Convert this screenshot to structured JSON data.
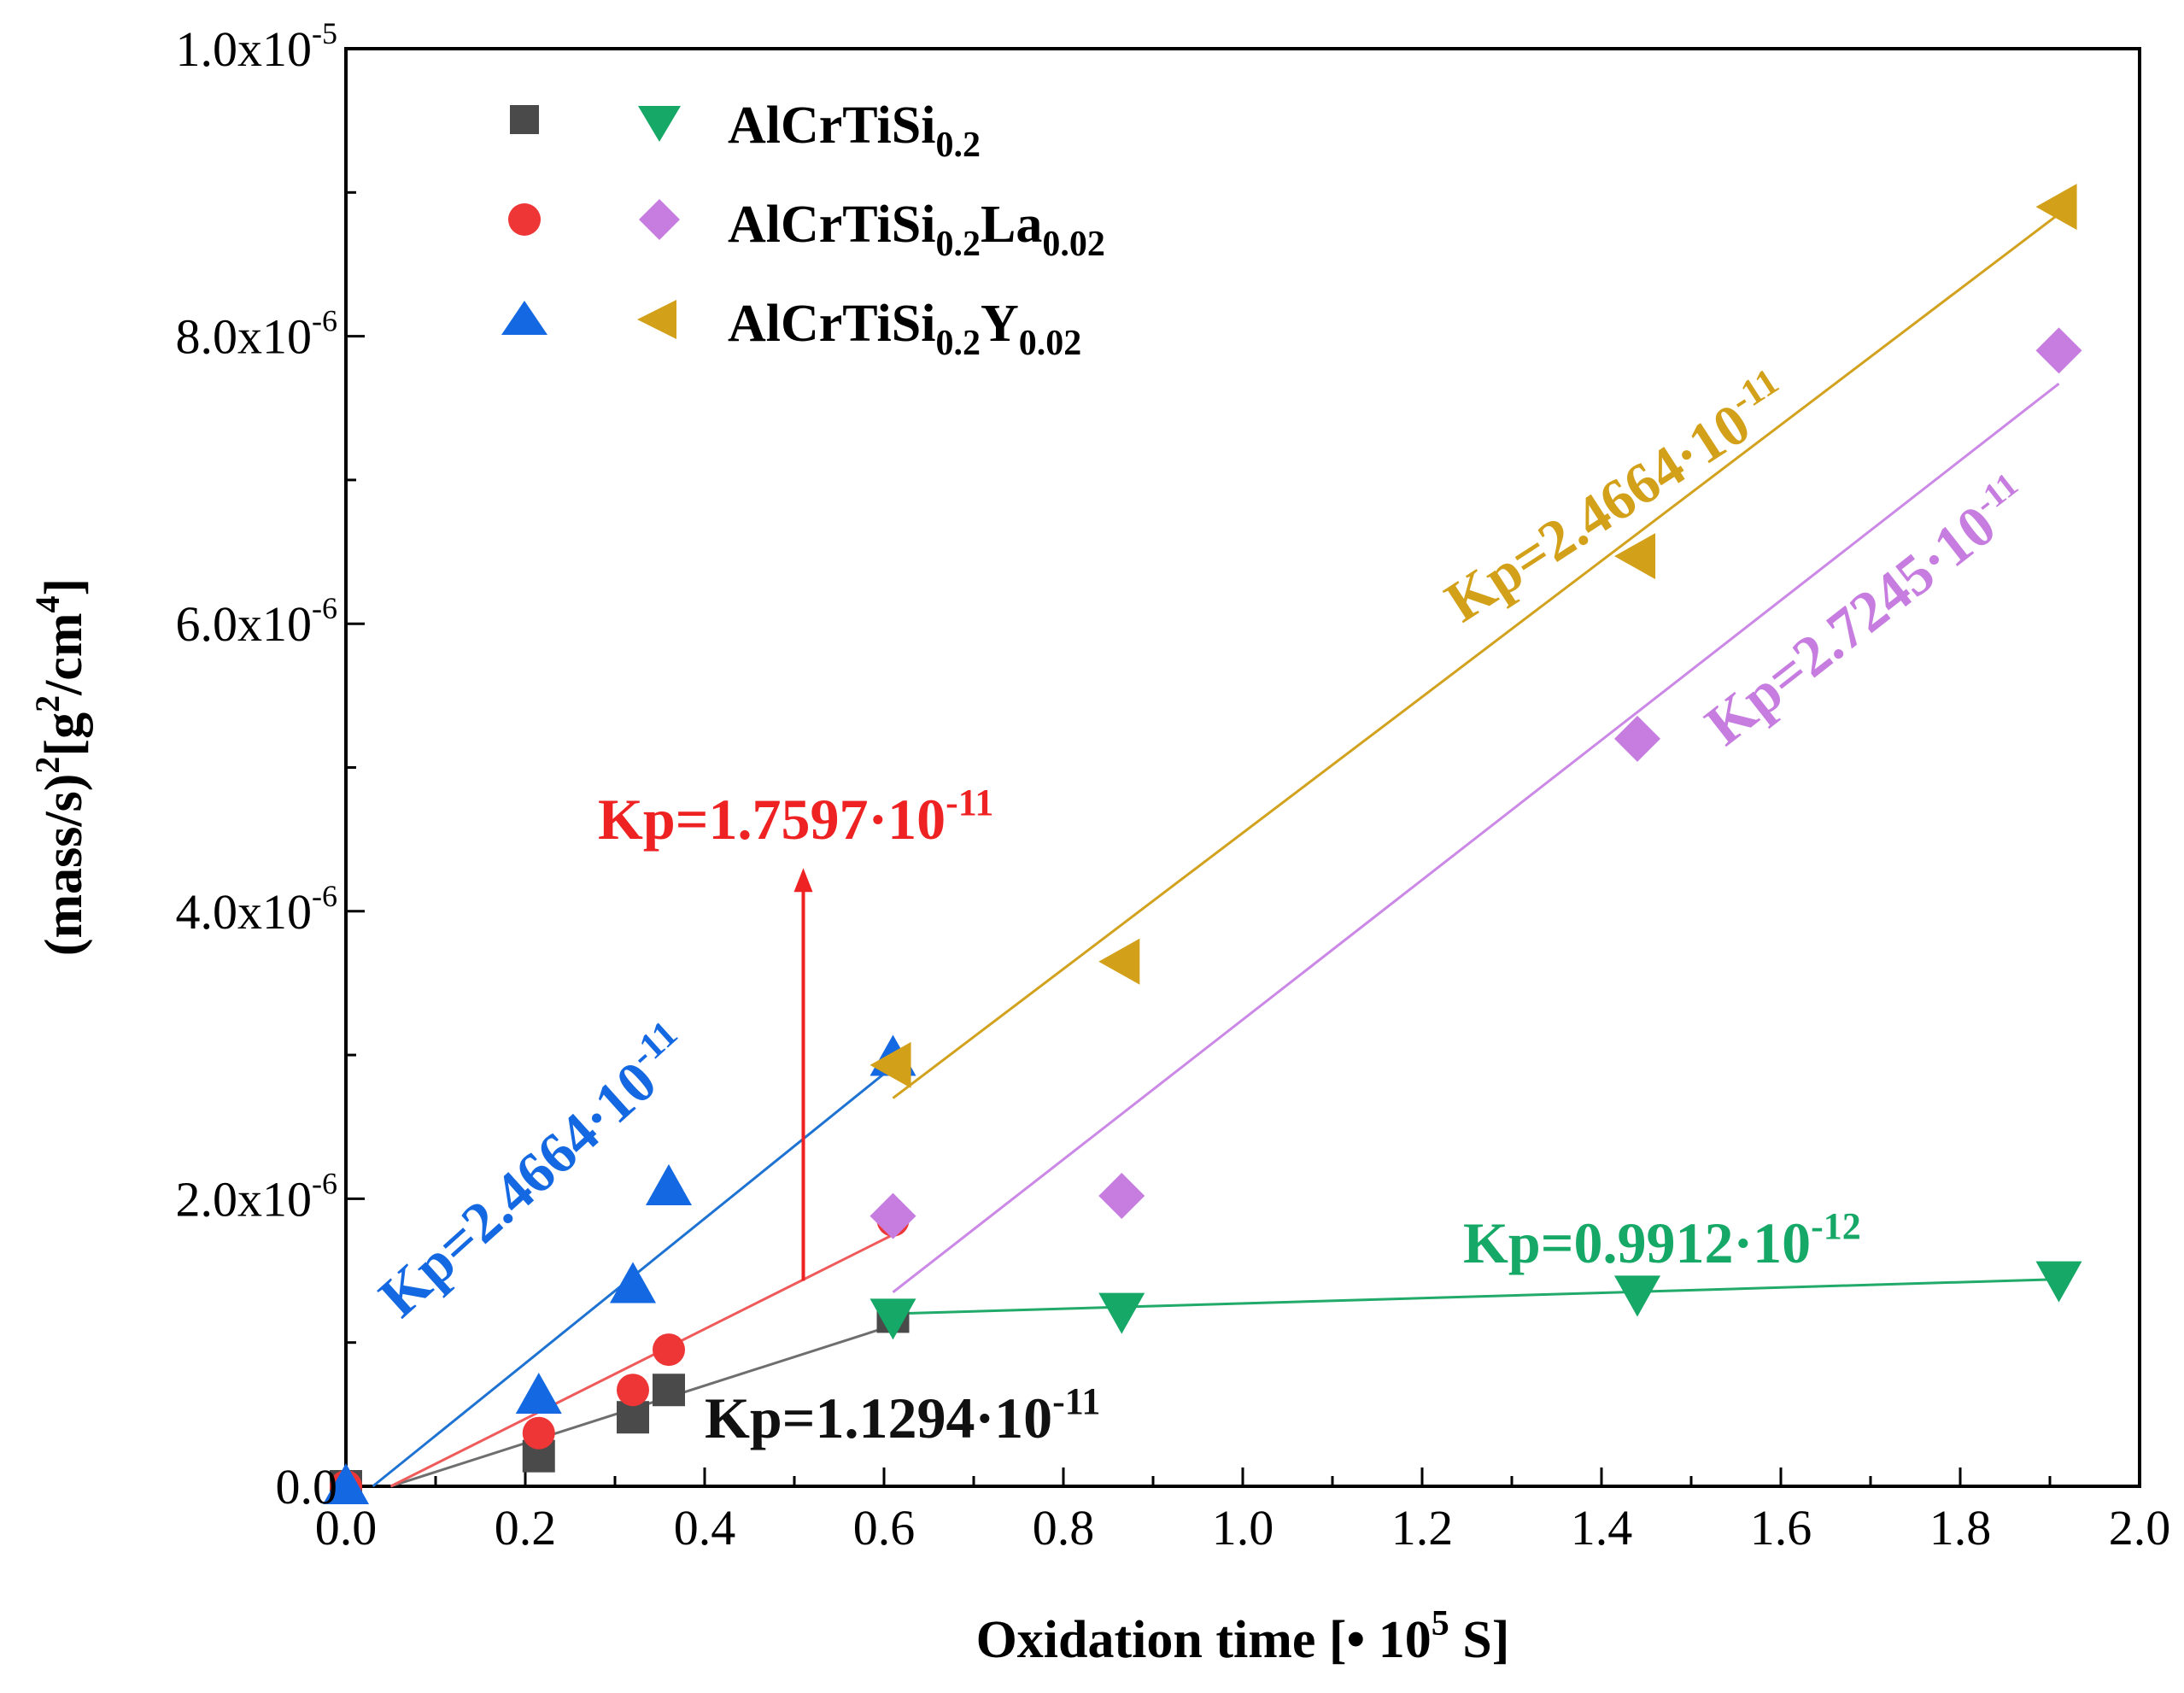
{
  "chart_data": {
    "type": "scatter",
    "title": "",
    "xlabel": "Oxidation time [• 10",
    "xlabel_sup": "5",
    "xlabel_end": " S]",
    "ylabel": "(mass/s)",
    "ylabel_sup1": "2",
    "ylabel_mid": "[g",
    "ylabel_sup2": "2",
    "ylabel_mid2": "/cm",
    "ylabel_sup3": "4",
    "ylabel_end": "]",
    "xlim": [
      0.0,
      2.0
    ],
    "ylim": [
      0.0,
      1e-05
    ],
    "x_ticks": [
      {
        "v": 0.0,
        "label": "0.0"
      },
      {
        "v": 0.2,
        "label": "0.2"
      },
      {
        "v": 0.4,
        "label": "0.4"
      },
      {
        "v": 0.6,
        "label": "0.6"
      },
      {
        "v": 0.8,
        "label": "0.8"
      },
      {
        "v": 1.0,
        "label": "1.0"
      },
      {
        "v": 1.2,
        "label": "1.2"
      },
      {
        "v": 1.4,
        "label": "1.4"
      },
      {
        "v": 1.6,
        "label": "1.6"
      },
      {
        "v": 1.8,
        "label": "1.8"
      },
      {
        "v": 2.0,
        "label": "2.0"
      }
    ],
    "y_ticks": [
      {
        "v": 0.0,
        "base": "0.0",
        "exp": ""
      },
      {
        "v": 2e-06,
        "base": "2.0x10",
        "exp": "-6"
      },
      {
        "v": 4e-06,
        "base": "4.0x10",
        "exp": "-6"
      },
      {
        "v": 6e-06,
        "base": "6.0x10",
        "exp": "-6"
      },
      {
        "v": 8e-06,
        "base": "8.0x10",
        "exp": "-6"
      },
      {
        "v": 1e-05,
        "base": "1.0x10",
        "exp": "-5"
      }
    ],
    "x_minor_step": 0.1,
    "y_minor_step": 1e-06,
    "legend": {
      "placement": "top-left",
      "entries": [
        {
          "main": "AlCrTiSi",
          "sub1": "0.2",
          "mid": "",
          "sub2": ""
        },
        {
          "main": "AlCrTiSi",
          "sub1": "0.2",
          "mid": "La",
          "sub2": "0.02"
        },
        {
          "main": "AlCrTiSi",
          "sub1": "0.2",
          "mid": "Y",
          "sub2": "0.02"
        }
      ]
    },
    "series": [
      {
        "name": "AlCrTiSi0.2 (stage 1)",
        "marker": "square",
        "color": "#4a4a4a",
        "x": [
          0.0,
          0.215,
          0.32,
          0.36,
          0.61
        ],
        "y": [
          0.0,
          2.1e-07,
          4.8e-07,
          6.7e-07,
          1.18e-06
        ],
        "fit": {
          "x": [
            0.05,
            0.61
          ],
          "y": [
            0.0,
            1.12e-06
          ],
          "color": "#6e6e6e"
        }
      },
      {
        "name": "AlCrTiSi0.2La0.02 (stage 1)",
        "marker": "circle",
        "color": "#ee3636",
        "x": [
          0.0,
          0.215,
          0.32,
          0.36,
          0.61
        ],
        "y": [
          0.0,
          3.7e-07,
          6.7e-07,
          9.5e-07,
          1.85e-06
        ],
        "fit": {
          "x": [
            0.05,
            0.61
          ],
          "y": [
            0.0,
            1.75e-06
          ],
          "color": "#f05a5a"
        }
      },
      {
        "name": "AlCrTiSi0.2Y0.02 (stage 1)",
        "marker": "triangle-up",
        "color": "#1469e2",
        "x": [
          0.0,
          0.215,
          0.32,
          0.36,
          0.61
        ],
        "y": [
          0.0,
          6.3e-07,
          1.4e-06,
          2.08e-06,
          2.98e-06
        ],
        "fit": {
          "x": [
            0.03,
            0.61
          ],
          "y": [
            0.0,
            2.92e-06
          ],
          "color": "#1e73d2"
        }
      },
      {
        "name": "AlCrTiSi0.2 (stage 2)",
        "marker": "triangle-down",
        "color": "#16a866",
        "x": [
          0.61,
          0.865,
          1.44,
          1.91
        ],
        "y": [
          1.18e-06,
          1.22e-06,
          1.34e-06,
          1.44e-06
        ],
        "fit": {
          "x": [
            0.61,
            1.91
          ],
          "y": [
            1.2e-06,
            1.44e-06
          ],
          "color": "#22aa6a"
        }
      },
      {
        "name": "AlCrTiSi0.2La0.02 (stage 2)",
        "marker": "diamond",
        "color": "#c77de0",
        "x": [
          0.61,
          0.865,
          1.44,
          1.91
        ],
        "y": [
          1.88e-06,
          2.02e-06,
          5.2e-06,
          7.9e-06
        ],
        "fit": {
          "x": [
            0.61,
            1.91
          ],
          "y": [
            1.35e-06,
            7.67e-06
          ],
          "color": "#cc88e6"
        }
      },
      {
        "name": "AlCrTiSi0.2Y0.02 (stage 2)",
        "marker": "triangle-left",
        "color": "#d3a01a",
        "x": [
          0.61,
          0.865,
          1.44,
          1.91
        ],
        "y": [
          2.93e-06,
          3.65e-06,
          6.47e-06,
          8.9e-06
        ],
        "fit": {
          "x": [
            0.61,
            1.91
          ],
          "y": [
            2.7e-06,
            8.85e-06
          ],
          "color": "#d2a21e"
        }
      }
    ],
    "annotations": [
      {
        "id": "blue",
        "prefix": "Kp=2.4664·10",
        "exp": "-11",
        "color": "#1469e2"
      },
      {
        "id": "red",
        "prefix": "Kp=1.7597·10",
        "exp": "-11",
        "color": "#ee2222"
      },
      {
        "id": "black",
        "prefix": "Kp=1.1294·10",
        "exp": "-11",
        "color": "#111111"
      },
      {
        "id": "green",
        "prefix": "Kp=0.9912·10",
        "exp": "-12",
        "color": "#16a866"
      },
      {
        "id": "gold",
        "prefix": "Kp=2.4664·10",
        "exp": "-11",
        "color": "#d3a01a"
      },
      {
        "id": "purple",
        "prefix": "Kp=2.7245·10",
        "exp": "-11",
        "color": "#c77de0"
      }
    ],
    "arrow": {
      "from": [
        0.51,
        1.43e-06
      ],
      "to": [
        0.51,
        4.3e-06
      ],
      "color": "#ee2222"
    }
  }
}
